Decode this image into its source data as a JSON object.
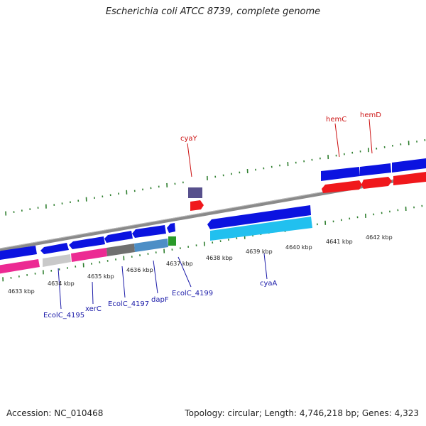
{
  "title": "Escherichia coli ATCC 8739, complete genome",
  "footer": {
    "accession": "Accession: NC_010468",
    "topology": "Topology: circular; Length: 4,746,218 bp; Genes: 4,323"
  },
  "colors": {
    "forward_gene": "#0b13e0",
    "reverse_gene": "#f0181c",
    "cds_reverse_strand": "#1f9ed6",
    "backbone": "#8a8a8a",
    "tick": "#2f7f2f",
    "label_red": "#cc1111",
    "label_blue": "#1a1aa8"
  },
  "kbp_ticks": [
    "4633 kbp",
    "4634 kbp",
    "4635 kbp",
    "4636 kbp",
    "4637 kbp",
    "4638 kbp",
    "4639 kbp",
    "4640 kbp",
    "4641 kbp",
    "4642 kbp"
  ],
  "gene_labels": {
    "cyaY": "cyaY",
    "hemC": "hemC",
    "hemD": "hemD",
    "EcolC_4195": "EcolC_4195",
    "xerC": "xerC",
    "EcolC_4197": "EcolC_4197",
    "dapF": "dapF",
    "EcolC_4199": "EcolC_4199",
    "cyaA": "cyaA"
  }
}
